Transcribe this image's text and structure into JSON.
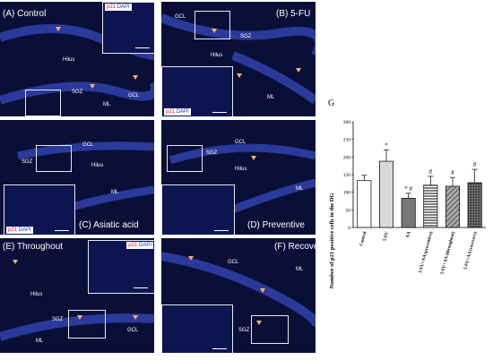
{
  "panels": [
    {
      "label": "(A) Control",
      "regions": [
        "Hilus",
        "SGZ",
        "GCL",
        "ML"
      ]
    },
    {
      "label": "(B) 5-FU",
      "regions": [
        "GCL",
        "SGZ",
        "Hilus",
        "ML"
      ]
    },
    {
      "label": "(C) Asiatic acid",
      "regions": [
        "GCL",
        "SGZ",
        "Hilus",
        "ML"
      ]
    },
    {
      "label": "(D) Preventive",
      "regions": [
        "GCL",
        "SGZ",
        "Hilus",
        "ML"
      ]
    },
    {
      "label": "(E) Throughout",
      "regions": [
        "Hilus",
        "SGZ",
        "GCL",
        "ML"
      ]
    },
    {
      "label": "(F) Recovery",
      "regions": [
        "GCL",
        "ML",
        "SGZ"
      ]
    }
  ],
  "legend": {
    "p21": "p21",
    "dapi": "DAPI"
  },
  "colors": {
    "background": "#0a0f38",
    "p21": "#e8102a",
    "dapi": "#1a38c8",
    "arrow": "#f5b070"
  },
  "chart_data": {
    "type": "bar",
    "panel_letter": "G",
    "ylabel": "Number of p21 positive cells in the DG",
    "categories": [
      "Control",
      "5-FU",
      "AA",
      "5-FU+AA (preventive)",
      "5-FU+AA (throughout)",
      "5-FU+AA (recovery)"
    ],
    "values": [
      133,
      188,
      83,
      120,
      117,
      127
    ],
    "errors": [
      15,
      32,
      14,
      25,
      25,
      38
    ],
    "significance": [
      "",
      "*",
      "* #",
      "#",
      "#",
      "#"
    ],
    "ylim": [
      0,
      300
    ]
  }
}
